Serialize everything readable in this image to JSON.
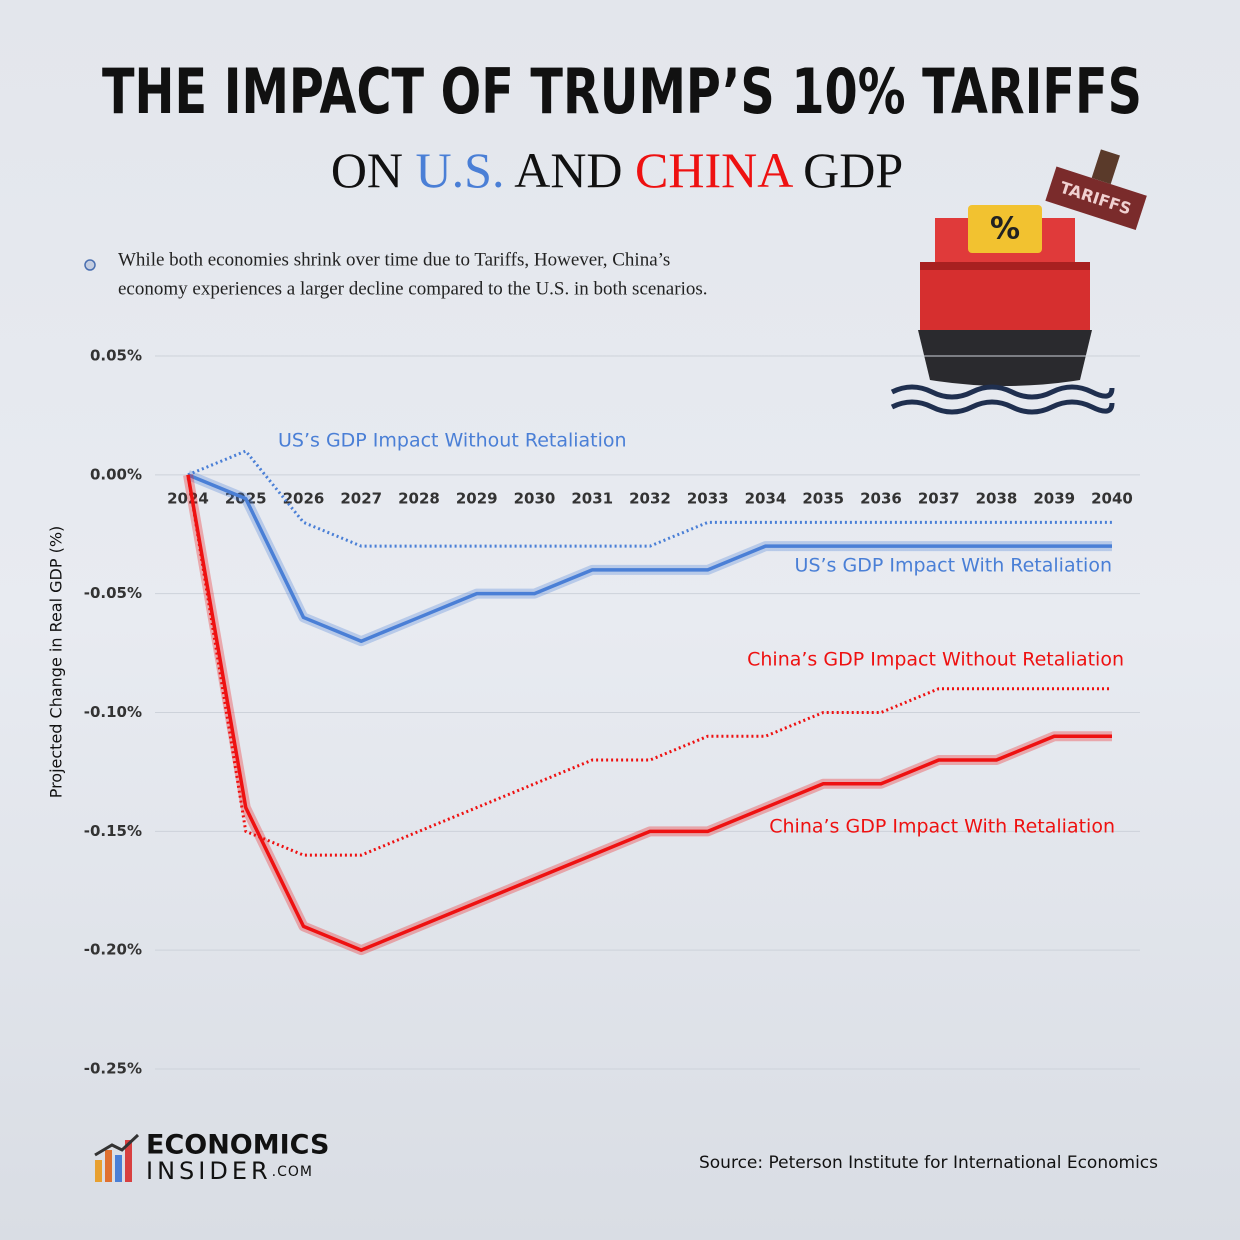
{
  "chart_data": {
    "type": "line",
    "title": "THE IMPACT OF TRUMP’S 10% TARIFFS",
    "subtitle": [
      {
        "text": "ON",
        "color": "#111111"
      },
      {
        "text": "U.S.",
        "color": "#4a7fd6"
      },
      {
        "text": "AND",
        "color": "#111111"
      },
      {
        "text": "CHINA",
        "color": "#ee1111"
      },
      {
        "text": "GDP",
        "color": "#111111"
      }
    ],
    "note": [
      "While both economies shrink over time due to Tariffs, However, China’s",
      "economy experiences a larger decline compared to the U.S. in both scenarios."
    ],
    "y_label": "Projected Change in Real GDP (%)",
    "categories": [
      "2024",
      "2025",
      "2026",
      "2027",
      "2028",
      "2029",
      "2030",
      "2031",
      "2032",
      "2033",
      "2034",
      "2035",
      "2036",
      "2037",
      "2038",
      "2039",
      "2040"
    ],
    "series": [
      {
        "name": "US’s GDP Impact Without Retaliation",
        "color": "#4a7fd6",
        "style": "dotted",
        "values": [
          0,
          0.01,
          -0.02,
          -0.03,
          -0.03,
          -0.03,
          -0.03,
          -0.03,
          -0.03,
          -0.02,
          -0.02,
          -0.02,
          -0.02,
          -0.02,
          -0.02,
          -0.02,
          -0.02
        ]
      },
      {
        "name": "US’s GDP Impact With Retaliation",
        "color": "#4a7fd6",
        "style": "solid",
        "values": [
          0,
          -0.01,
          -0.06,
          -0.07,
          -0.06,
          -0.05,
          -0.05,
          -0.04,
          -0.04,
          -0.04,
          -0.03,
          -0.03,
          -0.03,
          -0.03,
          -0.03,
          -0.03,
          -0.03
        ]
      },
      {
        "name": "China’s GDP Impact Without Retaliation",
        "color": "#ee1111",
        "style": "dotted",
        "values": [
          0,
          -0.15,
          -0.16,
          -0.16,
          -0.15,
          -0.14,
          -0.13,
          -0.12,
          -0.12,
          -0.11,
          -0.11,
          -0.1,
          -0.1,
          -0.09,
          -0.09,
          -0.09,
          -0.09
        ]
      },
      {
        "name": "China’s GDP Impact With Retaliation",
        "color": "#ee1111",
        "style": "solid",
        "values": [
          0,
          -0.14,
          -0.19,
          -0.2,
          -0.19,
          -0.18,
          -0.17,
          -0.16,
          -0.15,
          -0.15,
          -0.14,
          -0.13,
          -0.13,
          -0.12,
          -0.12,
          -0.11,
          -0.11
        ]
      }
    ],
    "ylim": [
      -0.25,
      0.05
    ],
    "yticks": [
      {
        "value": 0.05,
        "label": "0.05%"
      },
      {
        "value": 0,
        "label": "0.00%"
      },
      {
        "value": -0.05,
        "label": "-0.05%"
      },
      {
        "value": -0.1,
        "label": "-0.10%"
      },
      {
        "value": -0.15,
        "label": "-0.15%"
      },
      {
        "value": -0.2,
        "label": "-0.20%"
      },
      {
        "value": -0.25,
        "label": "-0.25%"
      }
    ],
    "grid": true,
    "source": "Source: Peterson Institute for International Economics",
    "logo": {
      "line1": "ECONOMICS",
      "line2": "INSIDER",
      "suffix": ".COM"
    },
    "illustration": {
      "stamp": "TARIFFS",
      "sign": "%"
    }
  }
}
